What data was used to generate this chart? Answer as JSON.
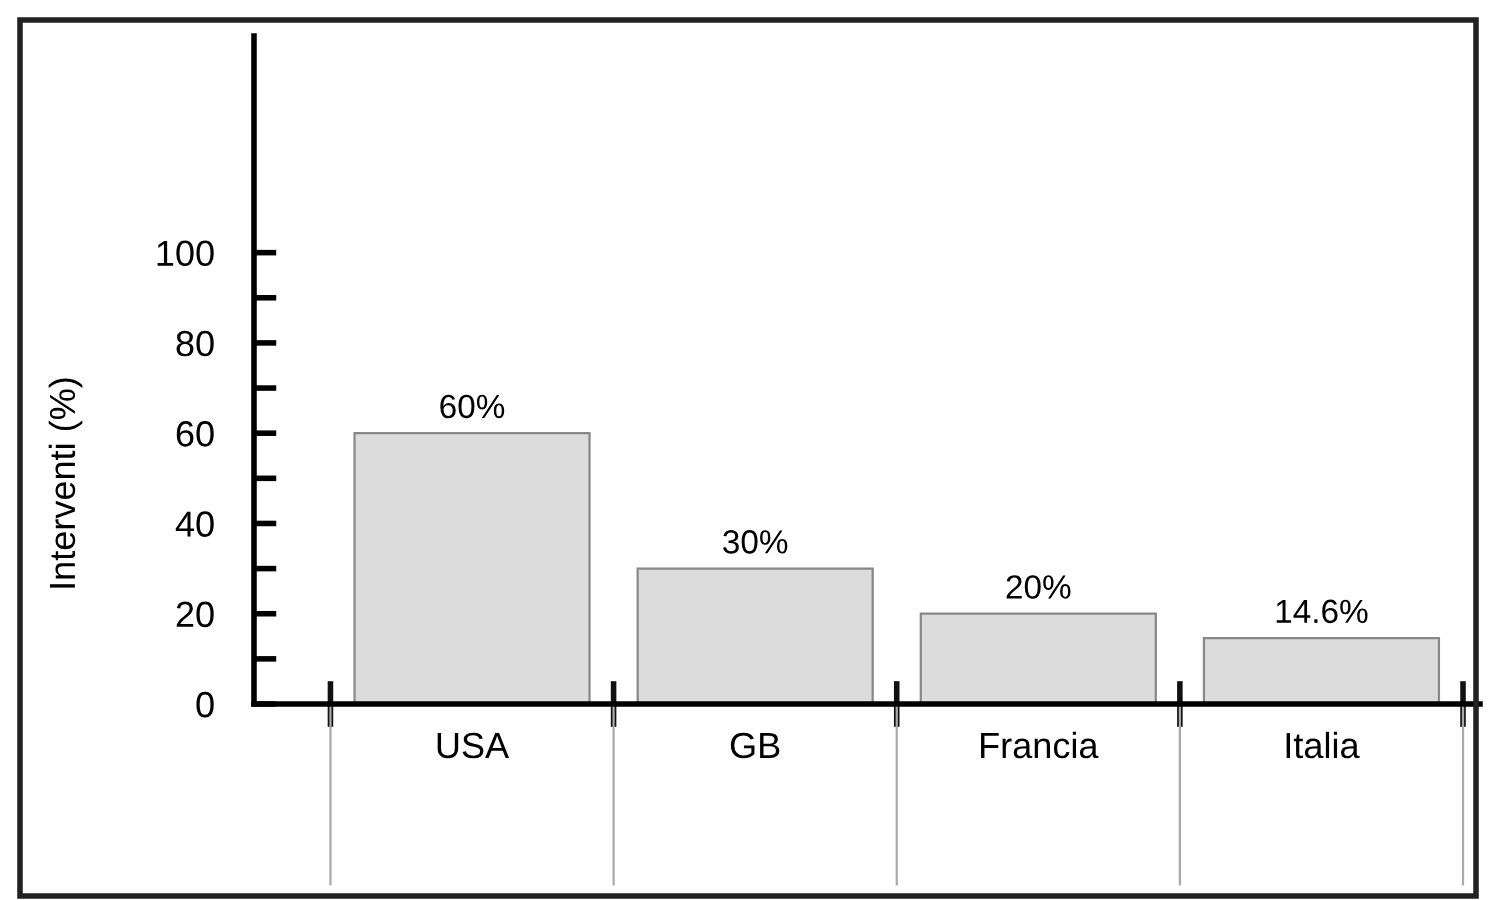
{
  "chart_data": {
    "type": "bar",
    "ylabel": "Interventi (%)",
    "categories": [
      "USA",
      "GB",
      "Francia",
      "Italia"
    ],
    "values": [
      60,
      30,
      20,
      14.6
    ],
    "value_labels": [
      "60%",
      "30%",
      "20%",
      "14.6%"
    ],
    "color": "#dcdcdc",
    "ylim": [
      0,
      148
    ],
    "yticks": [
      0,
      {
        "value": 10,
        "label": null
      },
      20,
      {
        "value": 30,
        "label": null
      },
      40,
      {
        "value": 50,
        "label": null
      },
      60,
      {
        "value": 70,
        "label": null
      },
      80,
      {
        "value": 90,
        "label": null
      },
      100
    ],
    "grid": false,
    "legend": false
  }
}
